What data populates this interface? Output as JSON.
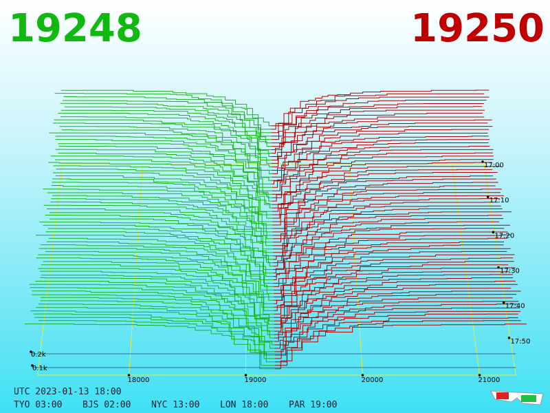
{
  "header": {
    "bid": "19248",
    "ask": "19250"
  },
  "price_axis": [
    18000,
    19000,
    20000,
    21000
  ],
  "time_axis": [
    "17:00",
    "17:10",
    "17:20",
    "17:30",
    "17:40",
    "17:50"
  ],
  "depth_axis": [
    "0.2k",
    "0.1k"
  ],
  "footer": {
    "utc": "UTC 2023-01-13 18:00",
    "zones": [
      "TYO 03:00",
      "BJS 02:00",
      "NYC 13:00",
      "LON 18:00",
      "PAR 19:00"
    ]
  }
}
